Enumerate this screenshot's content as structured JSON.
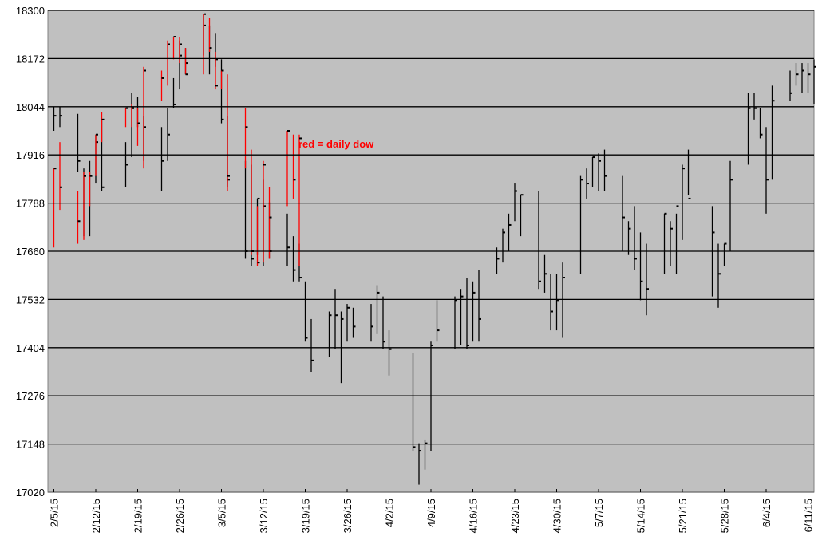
{
  "chart_data": {
    "type": "hlc",
    "annotation": "red = daily dow",
    "annotation_color": "#ff0000",
    "background": "#c0c0c0",
    "grid": true,
    "ylim": [
      17020,
      18300
    ],
    "yticks": [
      17020,
      17148,
      17276,
      17404,
      17532,
      17660,
      17788,
      17916,
      18044,
      18172,
      18300
    ],
    "xlim": [
      "2015-02-04",
      "2015-06-12"
    ],
    "xticks": [
      {
        "value": "2015-02-05",
        "label": "2/5/15"
      },
      {
        "value": "2015-02-12",
        "label": "2/12/15"
      },
      {
        "value": "2015-02-19",
        "label": "2/19/15"
      },
      {
        "value": "2015-02-26",
        "label": "2/26/15"
      },
      {
        "value": "2015-03-05",
        "label": "3/5/15"
      },
      {
        "value": "2015-03-12",
        "label": "3/12/15"
      },
      {
        "value": "2015-03-19",
        "label": "3/19/15"
      },
      {
        "value": "2015-03-26",
        "label": "3/26/15"
      },
      {
        "value": "2015-04-02",
        "label": "4/2/15"
      },
      {
        "value": "2015-04-09",
        "label": "4/9/15"
      },
      {
        "value": "2015-04-16",
        "label": "4/16/15"
      },
      {
        "value": "2015-04-23",
        "label": "4/23/15"
      },
      {
        "value": "2015-04-30",
        "label": "4/30/15"
      },
      {
        "value": "2015-05-07",
        "label": "5/7/15"
      },
      {
        "value": "2015-05-14",
        "label": "5/14/15"
      },
      {
        "value": "2015-05-21",
        "label": "5/21/15"
      },
      {
        "value": "2015-05-28",
        "label": "5/28/15"
      },
      {
        "value": "2015-06-04",
        "label": "6/4/15"
      },
      {
        "value": "2015-06-11",
        "label": "6/11/15"
      }
    ],
    "series": [
      {
        "color": "#000000",
        "x": [
          "2015-02-05",
          "2015-02-06",
          "2015-02-09",
          "2015-02-10",
          "2015-02-11",
          "2015-02-12",
          "2015-02-13",
          "2015-02-17",
          "2015-02-18",
          "2015-02-19",
          "2015-02-20",
          "2015-02-23",
          "2015-02-24",
          "2015-02-25",
          "2015-02-26",
          "2015-02-27",
          "2015-03-02",
          "2015-03-03",
          "2015-03-04",
          "2015-03-05",
          "2015-03-06",
          "2015-03-09",
          "2015-03-10",
          "2015-03-11",
          "2015-03-12",
          "2015-03-13",
          "2015-03-16",
          "2015-03-17",
          "2015-03-18",
          "2015-03-19",
          "2015-03-20",
          "2015-03-23",
          "2015-03-24",
          "2015-03-25",
          "2015-03-26",
          "2015-03-27",
          "2015-03-30",
          "2015-03-31",
          "2015-04-01",
          "2015-04-02",
          "2015-04-06",
          "2015-04-07",
          "2015-04-08",
          "2015-04-09",
          "2015-04-10",
          "2015-04-13",
          "2015-04-14",
          "2015-04-15",
          "2015-04-16",
          "2015-04-17",
          "2015-04-20",
          "2015-04-21",
          "2015-04-22",
          "2015-04-23",
          "2015-04-24",
          "2015-04-27",
          "2015-04-28",
          "2015-04-29",
          "2015-04-30",
          "2015-05-01",
          "2015-05-04",
          "2015-05-05",
          "2015-05-06",
          "2015-05-07",
          "2015-05-08",
          "2015-05-11",
          "2015-05-12",
          "2015-05-13",
          "2015-05-14",
          "2015-05-15",
          "2015-05-18",
          "2015-05-19",
          "2015-05-20",
          "2015-05-21",
          "2015-05-22",
          "2015-05-26",
          "2015-05-27",
          "2015-05-28",
          "2015-05-29",
          "2015-06-01",
          "2015-06-02",
          "2015-06-03",
          "2015-06-04",
          "2015-06-05",
          "2015-06-08",
          "2015-06-09",
          "2015-06-10",
          "2015-06-11",
          "2015-06-12"
        ],
        "high": [
          18044,
          18044,
          18025,
          17880,
          17900,
          17970,
          18010,
          17950,
          18080,
          18070,
          18020,
          17990,
          18040,
          18120,
          18220,
          18200,
          18290,
          18260,
          18240,
          18170,
          18020,
          17900,
          17890,
          17800,
          17850,
          17790,
          17760,
          17700,
          17680,
          17580,
          17480,
          17500,
          17560,
          17500,
          17520,
          17510,
          17520,
          17570,
          17540,
          17450,
          17390,
          17150,
          17160,
          17420,
          17530,
          17540,
          17560,
          17590,
          17580,
          17610,
          17670,
          17720,
          17760,
          17840,
          17810,
          17820,
          17650,
          17600,
          17600,
          17630,
          17860,
          17880,
          17910,
          17920,
          17930,
          17860,
          17740,
          17780,
          17710,
          17680,
          17760,
          17740,
          17760,
          17890,
          17930,
          17780,
          17680,
          17680,
          17900,
          18080,
          18080,
          18040,
          17990,
          18100,
          18140,
          18160,
          18160,
          18160,
          18170
        ],
        "low": [
          17980,
          17990,
          17870,
          17700,
          17700,
          17840,
          17820,
          17830,
          17910,
          17990,
          17900,
          17820,
          17900,
          18040,
          18090,
          18130,
          18180,
          18130,
          18150,
          18000,
          17830,
          17640,
          17620,
          17650,
          17620,
          17640,
          17620,
          17580,
          17580,
          17420,
          17340,
          17380,
          17400,
          17310,
          17420,
          17430,
          17420,
          17440,
          17400,
          17330,
          17130,
          17040,
          17080,
          17130,
          17420,
          17400,
          17410,
          17400,
          17420,
          17420,
          17600,
          17630,
          17660,
          17740,
          17700,
          17560,
          17550,
          17450,
          17450,
          17430,
          17600,
          17800,
          17830,
          17820,
          17820,
          17660,
          17650,
          17610,
          17530,
          17490,
          17600,
          17620,
          17600,
          17690,
          17810,
          17540,
          17510,
          17620,
          17660,
          17890,
          18010,
          17960,
          17760,
          17850,
          18060,
          18100,
          18080,
          18080,
          18050
        ],
        "close": [
          18020,
          18020,
          17900,
          17860,
          17860,
          17950,
          17830,
          17890,
          18040,
          18000,
          17990,
          17900,
          17970,
          18050,
          18180,
          18160,
          18260,
          18200,
          18170,
          18010,
          17850,
          17660,
          17640,
          17800,
          17780,
          17660,
          17670,
          17610,
          17590,
          17430,
          17370,
          17490,
          17490,
          17480,
          17510,
          17460,
          17460,
          17550,
          17420,
          17400,
          17140,
          17130,
          17150,
          17410,
          17450,
          17530,
          17540,
          17410,
          17550,
          17480,
          17640,
          17710,
          17730,
          17820,
          17810,
          17580,
          17600,
          17500,
          17530,
          17590,
          17850,
          17840,
          17910,
          17900,
          17860,
          17750,
          17720,
          17640,
          17580,
          17560,
          17760,
          17720,
          17780,
          17880,
          17800,
          17710,
          17600,
          17680,
          17850,
          18040,
          18040,
          17970,
          17850,
          18060,
          18080,
          18130,
          18140,
          18130,
          18150
        ]
      },
      {
        "color": "#ff0000",
        "x": [
          "2015-02-05",
          "2015-02-06",
          "2015-02-09",
          "2015-02-10",
          "2015-02-11",
          "2015-02-12",
          "2015-02-13",
          "2015-02-17",
          "2015-02-18",
          "2015-02-19",
          "2015-02-20",
          "2015-02-23",
          "2015-02-24",
          "2015-02-25",
          "2015-02-26",
          "2015-02-27",
          "2015-03-02",
          "2015-03-03",
          "2015-03-04",
          "2015-03-05",
          "2015-03-06",
          "2015-03-09",
          "2015-03-10",
          "2015-03-11",
          "2015-03-12",
          "2015-03-13",
          "2015-03-16",
          "2015-03-17",
          "2015-03-18"
        ],
        "high": [
          17880,
          17950,
          17820,
          17870,
          17870,
          17970,
          18030,
          18040,
          18050,
          18040,
          18150,
          18140,
          18220,
          18230,
          18230,
          18200,
          18290,
          18280,
          18190,
          18140,
          18130,
          18040,
          17930,
          17780,
          17900,
          17830,
          17980,
          17970,
          17970
        ],
        "low": [
          17670,
          17770,
          17680,
          17690,
          17780,
          17860,
          17950,
          17990,
          17990,
          17940,
          17880,
          18060,
          18100,
          18170,
          18160,
          18130,
          18130,
          18190,
          18090,
          18090,
          17820,
          17880,
          17650,
          17620,
          17630,
          17640,
          17780,
          17800,
          17620
        ],
        "close": [
          17880,
          17830,
          17740,
          17860,
          17860,
          17970,
          18010,
          18040,
          18040,
          18000,
          18140,
          18120,
          18210,
          18230,
          18210,
          18130,
          18290,
          18200,
          18100,
          18140,
          17860,
          17990,
          17660,
          17630,
          17890,
          17750,
          17980,
          17850,
          17960
        ]
      }
    ]
  }
}
